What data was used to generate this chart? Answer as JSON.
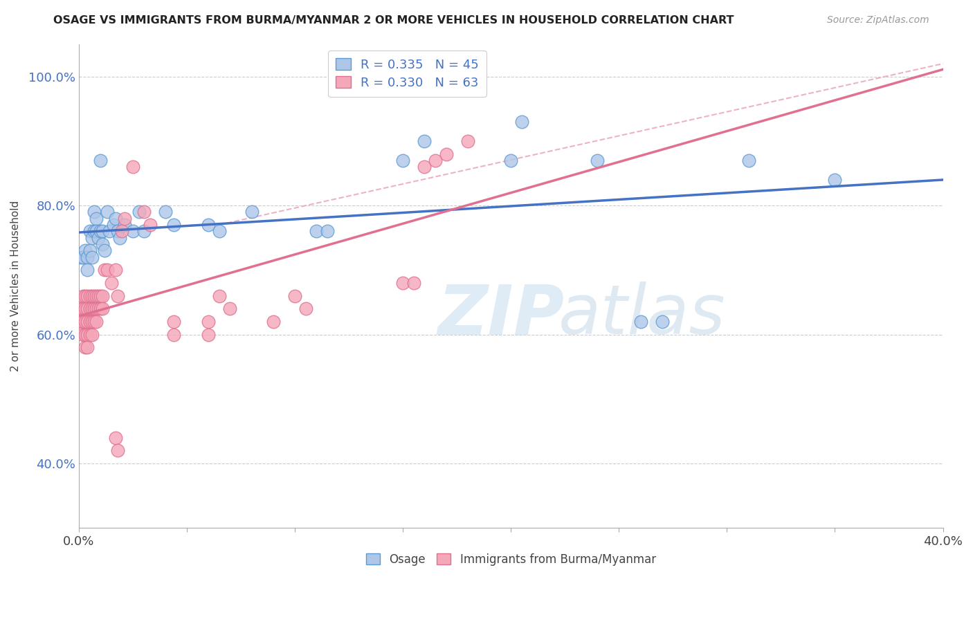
{
  "title": "OSAGE VS IMMIGRANTS FROM BURMA/MYANMAR 2 OR MORE VEHICLES IN HOUSEHOLD CORRELATION CHART",
  "source": "Source: ZipAtlas.com",
  "ylabel": "2 or more Vehicles in Household",
  "legend_osage": "R = 0.335   N = 45",
  "legend_burma": "R = 0.330   N = 63",
  "legend_label1": "Osage",
  "legend_label2": "Immigrants from Burma/Myanmar",
  "color_osage": "#aec6e8",
  "color_burma": "#f4a7b9",
  "edge_osage": "#5b9bd5",
  "edge_burma": "#e07090",
  "line_osage": "#4472c4",
  "line_burma": "#e07090",
  "line_diag_color": "#e8a0b4",
  "R_osage": 0.335,
  "N_osage": 45,
  "R_burma": 0.33,
  "N_burma": 63,
  "osage_points": [
    [
      0.001,
      0.72
    ],
    [
      0.002,
      0.72
    ],
    [
      0.003,
      0.73
    ],
    [
      0.004,
      0.72
    ],
    [
      0.004,
      0.7
    ],
    [
      0.005,
      0.76
    ],
    [
      0.005,
      0.73
    ],
    [
      0.006,
      0.75
    ],
    [
      0.006,
      0.72
    ],
    [
      0.007,
      0.79
    ],
    [
      0.007,
      0.76
    ],
    [
      0.008,
      0.78
    ],
    [
      0.008,
      0.76
    ],
    [
      0.009,
      0.75
    ],
    [
      0.01,
      0.87
    ],
    [
      0.01,
      0.76
    ],
    [
      0.011,
      0.76
    ],
    [
      0.011,
      0.74
    ],
    [
      0.012,
      0.73
    ],
    [
      0.013,
      0.79
    ],
    [
      0.014,
      0.76
    ],
    [
      0.016,
      0.77
    ],
    [
      0.017,
      0.78
    ],
    [
      0.018,
      0.76
    ],
    [
      0.019,
      0.75
    ],
    [
      0.021,
      0.77
    ],
    [
      0.025,
      0.76
    ],
    [
      0.028,
      0.79
    ],
    [
      0.03,
      0.76
    ],
    [
      0.04,
      0.79
    ],
    [
      0.044,
      0.77
    ],
    [
      0.06,
      0.77
    ],
    [
      0.065,
      0.76
    ],
    [
      0.08,
      0.79
    ],
    [
      0.11,
      0.76
    ],
    [
      0.115,
      0.76
    ],
    [
      0.15,
      0.87
    ],
    [
      0.16,
      0.9
    ],
    [
      0.2,
      0.87
    ],
    [
      0.205,
      0.93
    ],
    [
      0.24,
      0.87
    ],
    [
      0.26,
      0.62
    ],
    [
      0.27,
      0.62
    ],
    [
      0.31,
      0.87
    ],
    [
      0.35,
      0.84
    ]
  ],
  "burma_points": [
    [
      0.001,
      0.64
    ],
    [
      0.001,
      0.62
    ],
    [
      0.002,
      0.66
    ],
    [
      0.002,
      0.64
    ],
    [
      0.002,
      0.62
    ],
    [
      0.002,
      0.6
    ],
    [
      0.003,
      0.66
    ],
    [
      0.003,
      0.64
    ],
    [
      0.003,
      0.62
    ],
    [
      0.003,
      0.6
    ],
    [
      0.003,
      0.58
    ],
    [
      0.004,
      0.66
    ],
    [
      0.004,
      0.64
    ],
    [
      0.004,
      0.62
    ],
    [
      0.004,
      0.6
    ],
    [
      0.004,
      0.58
    ],
    [
      0.005,
      0.66
    ],
    [
      0.005,
      0.64
    ],
    [
      0.005,
      0.62
    ],
    [
      0.005,
      0.6
    ],
    [
      0.006,
      0.66
    ],
    [
      0.006,
      0.64
    ],
    [
      0.006,
      0.62
    ],
    [
      0.006,
      0.6
    ],
    [
      0.007,
      0.66
    ],
    [
      0.007,
      0.64
    ],
    [
      0.007,
      0.62
    ],
    [
      0.008,
      0.66
    ],
    [
      0.008,
      0.64
    ],
    [
      0.008,
      0.62
    ],
    [
      0.009,
      0.66
    ],
    [
      0.009,
      0.64
    ],
    [
      0.01,
      0.66
    ],
    [
      0.01,
      0.64
    ],
    [
      0.011,
      0.66
    ],
    [
      0.011,
      0.64
    ],
    [
      0.012,
      0.7
    ],
    [
      0.013,
      0.7
    ],
    [
      0.015,
      0.68
    ],
    [
      0.017,
      0.7
    ],
    [
      0.018,
      0.66
    ],
    [
      0.02,
      0.76
    ],
    [
      0.021,
      0.78
    ],
    [
      0.025,
      0.86
    ],
    [
      0.03,
      0.79
    ],
    [
      0.033,
      0.77
    ],
    [
      0.044,
      0.62
    ],
    [
      0.044,
      0.6
    ],
    [
      0.06,
      0.62
    ],
    [
      0.06,
      0.6
    ],
    [
      0.065,
      0.66
    ],
    [
      0.07,
      0.64
    ],
    [
      0.09,
      0.62
    ],
    [
      0.1,
      0.66
    ],
    [
      0.105,
      0.64
    ],
    [
      0.15,
      0.68
    ],
    [
      0.155,
      0.68
    ],
    [
      0.017,
      0.44
    ],
    [
      0.018,
      0.42
    ],
    [
      0.16,
      0.86
    ],
    [
      0.165,
      0.87
    ],
    [
      0.17,
      0.88
    ],
    [
      0.18,
      0.9
    ]
  ],
  "xlim": [
    0.0,
    0.4
  ],
  "ylim": [
    0.3,
    1.05
  ],
  "x_ticks": [
    0.0,
    0.05,
    0.1,
    0.15,
    0.2,
    0.25,
    0.3,
    0.35,
    0.4
  ],
  "y_ticks": [
    0.4,
    0.6,
    0.8,
    1.0
  ],
  "watermark_zip": "ZIP",
  "watermark_atlas": "atlas",
  "background_color": "#ffffff"
}
